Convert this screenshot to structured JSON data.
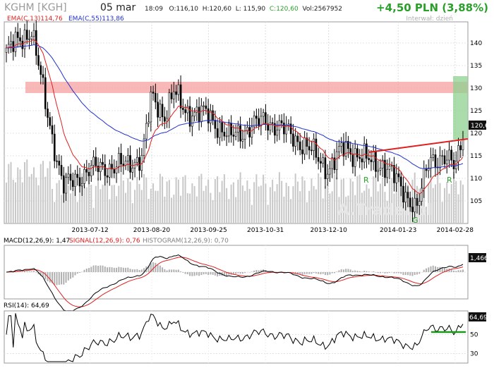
{
  "header": {
    "symbol": "KGHM [KGH]",
    "date": "05 mar",
    "time": "18:09",
    "open": "O:116,10",
    "high": "H:120,60",
    "low": "L: 115,90",
    "close": "C:120,60",
    "volume": "Vol:2567952",
    "change": "+4,50 PLN (3,88%)",
    "interval": "Interwał: dzień"
  },
  "legend": {
    "ema13": "EMA(C,13)114,76",
    "ema55": "EMA(C,55)113,86",
    "macd": "MACD(12,26,9): 1,47",
    "signal": "SIGNAL(12,26,9): 0,76",
    "histogram": "HISTOGRAM(12,26,9): 0,70",
    "rsi": "RSI(14): 64,69"
  },
  "badges": {
    "price": "120,6",
    "macd": "1,466",
    "rsi": "64,69"
  },
  "annotations": {
    "r1": "R",
    "r2": "R",
    "g": "G"
  },
  "watermark": "A.Trader.pl",
  "colors": {
    "up_green": "#2aa02a",
    "ema13": "#e02020",
    "ema55": "#2030d0",
    "resistance_zone": "#f5a0a0",
    "trendline": "#e02020",
    "highlight": "#8fd08f",
    "macd_line": "#000000",
    "signal_line": "#e02020",
    "histogram": "#b0b0b0",
    "rsi_line": "#000000",
    "rsi50": "#1a9a1a"
  },
  "chart_data": [
    {
      "type": "candlestick",
      "title": "KGHM [KGH]",
      "x": [
        "2013-07-12",
        "2013-08-20",
        "2013-09-25",
        "2013-10-31",
        "2013-12-10",
        "2014-01-23",
        "2014-02-28"
      ],
      "x_tick_labels": [
        "2013-07-12",
        "2013-08-20",
        "2013-09-25",
        "2013-10-31",
        "2013-12-10",
        "2014-01-23",
        "2014-02-28"
      ],
      "y_ticks": [
        105,
        110,
        115,
        120,
        125,
        130,
        135,
        140
      ],
      "ylim": [
        101,
        146
      ],
      "key_points": [
        {
          "date": "2013-05-20",
          "close": 138
        },
        {
          "date": "2013-06-05",
          "close": 143
        },
        {
          "date": "2013-06-14",
          "close": 126
        },
        {
          "date": "2013-06-25",
          "close": 108
        },
        {
          "date": "2013-07-12",
          "close": 112
        },
        {
          "date": "2013-08-05",
          "close": 113
        },
        {
          "date": "2013-08-14",
          "close": 115
        },
        {
          "date": "2013-08-20",
          "close": 128
        },
        {
          "date": "2013-08-28",
          "close": 124
        },
        {
          "date": "2013-09-03",
          "close": 129
        },
        {
          "date": "2013-09-10",
          "close": 125
        },
        {
          "date": "2013-09-25",
          "close": 124
        },
        {
          "date": "2013-10-08",
          "close": 119
        },
        {
          "date": "2013-10-31",
          "close": 123
        },
        {
          "date": "2013-11-15",
          "close": 120
        },
        {
          "date": "2013-11-29",
          "close": 116
        },
        {
          "date": "2013-12-10",
          "close": 112
        },
        {
          "date": "2013-12-20",
          "close": 117
        },
        {
          "date": "2014-01-03",
          "close": 114
        },
        {
          "date": "2014-01-14",
          "close": 113
        },
        {
          "date": "2014-01-23",
          "close": 109
        },
        {
          "date": "2014-02-04",
          "close": 103
        },
        {
          "date": "2014-02-12",
          "close": 115
        },
        {
          "date": "2014-02-20",
          "close": 114
        },
        {
          "date": "2014-02-28",
          "close": 113
        },
        {
          "date": "2014-03-05",
          "close": 120.6
        }
      ],
      "resistance_zone": [
        128,
        131
      ],
      "last_price": 120.6,
      "indicators": [
        "EMA(C,13)",
        "EMA(C,55)"
      ],
      "annotations": [
        "R",
        "R",
        "G"
      ]
    },
    {
      "type": "line",
      "title": "MACD(12,26,9)",
      "series": [
        {
          "name": "MACD",
          "last": 1.47
        },
        {
          "name": "SIGNAL",
          "last": 0.76
        },
        {
          "name": "HISTOGRAM",
          "last": 0.7
        }
      ],
      "last_label": "1,466"
    },
    {
      "type": "line",
      "title": "RSI(14)",
      "y_ticks": [
        30,
        50
      ],
      "ylim": [
        20,
        75
      ],
      "series": [
        {
          "name": "RSI(14)",
          "last": 64.69
        }
      ]
    }
  ]
}
